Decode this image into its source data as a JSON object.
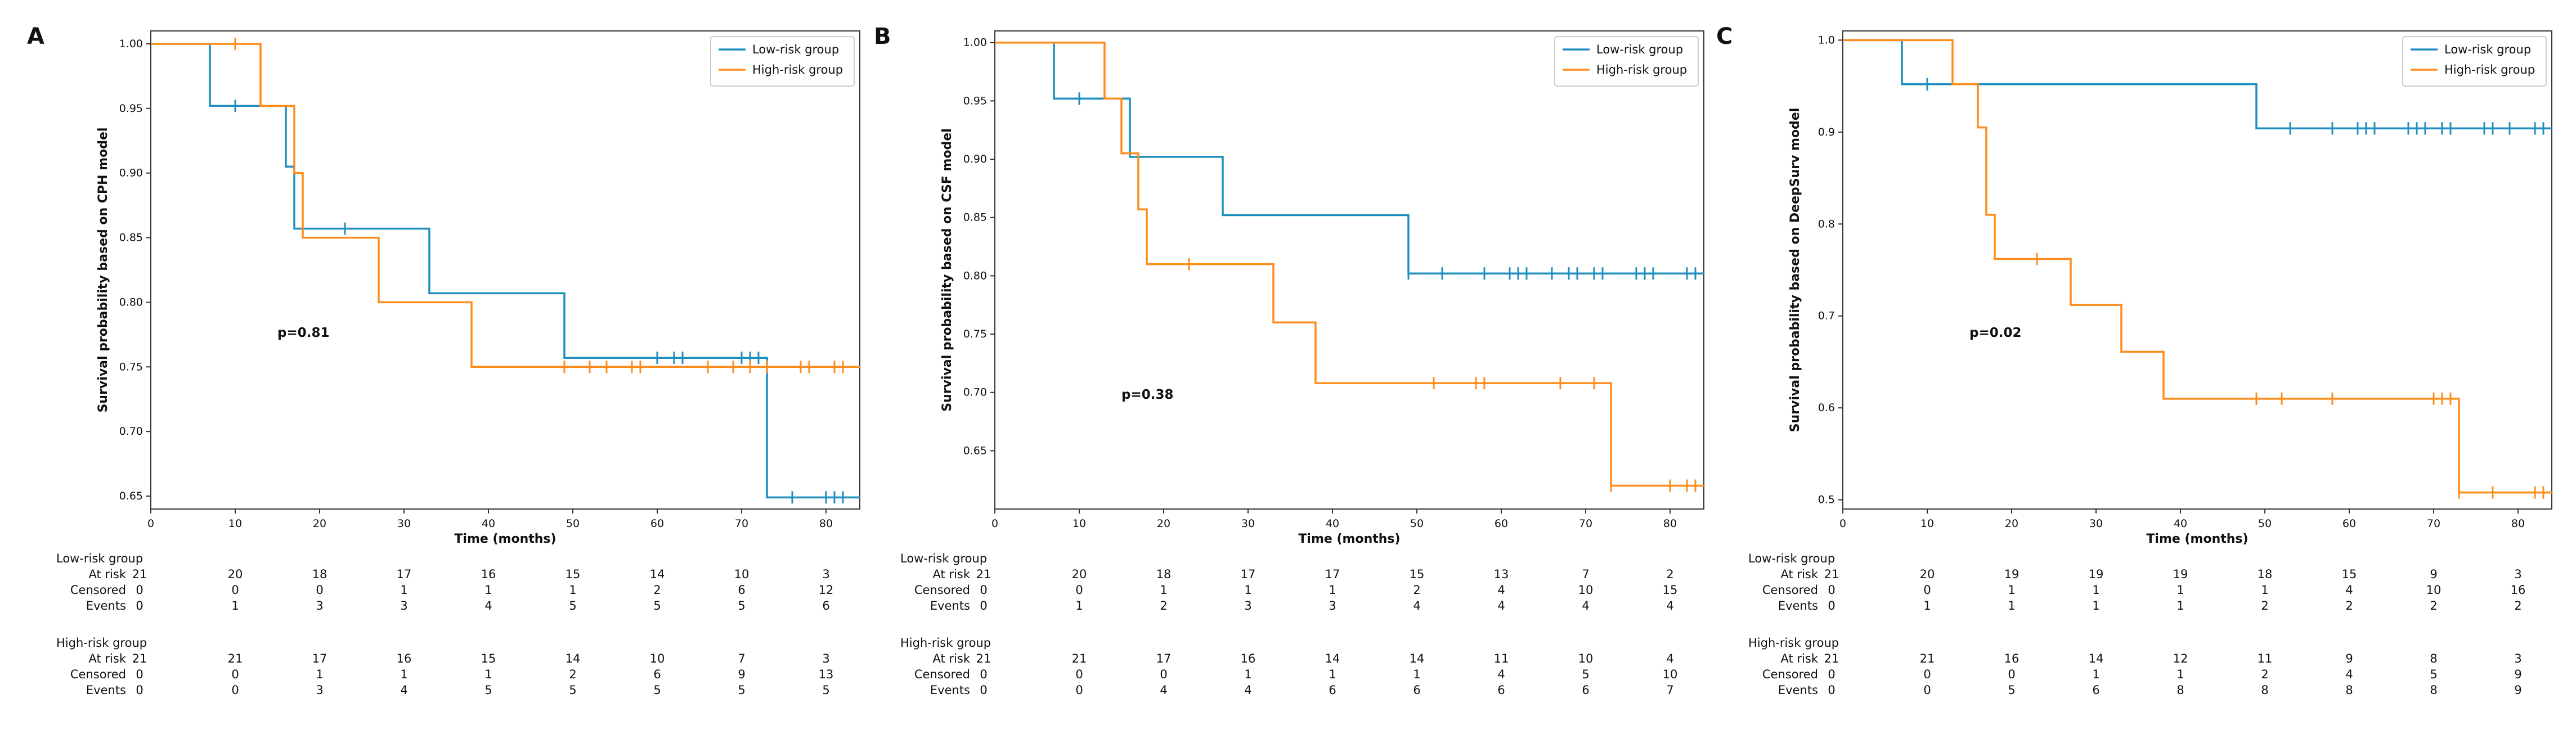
{
  "colors": {
    "low": "#1f8fbf",
    "high": "#ff8c1a",
    "axis": "#333333",
    "text": "#111111"
  },
  "chart_data": [
    {
      "type": "line",
      "panel_label": "A",
      "ylabel": "Survival probability based on CPH model",
      "xlabel": "Time (months)",
      "xlim": [
        0,
        84
      ],
      "ylim": [
        0.64,
        1.01
      ],
      "xticks": [
        0,
        10,
        20,
        30,
        40,
        50,
        60,
        70,
        80
      ],
      "yticks": [
        0.65,
        0.7,
        0.75,
        0.8,
        0.85,
        0.9,
        0.95,
        1.0
      ],
      "ytick_labels": [
        "0.65",
        "0.70",
        "0.75",
        "0.80",
        "0.85",
        "0.90",
        "0.95",
        "1.00"
      ],
      "pvalue_label": "p=0.81",
      "legend": [
        "Low-risk group",
        "High-risk group"
      ],
      "series": [
        {
          "name": "Low-risk group",
          "color": "low",
          "steps": [
            [
              0,
              1.0
            ],
            [
              7,
              0.952
            ],
            [
              16,
              0.905
            ],
            [
              17,
              0.857
            ],
            [
              33,
              0.807
            ],
            [
              49,
              0.757
            ],
            [
              73,
              0.649
            ],
            [
              84,
              0.649
            ]
          ],
          "censors": [
            [
              10,
              0.952
            ],
            [
              23,
              0.857
            ],
            [
              60,
              0.757
            ],
            [
              62,
              0.757
            ],
            [
              63,
              0.757
            ],
            [
              70,
              0.757
            ],
            [
              71,
              0.757
            ],
            [
              72,
              0.757
            ],
            [
              76,
              0.649
            ],
            [
              80,
              0.649
            ],
            [
              81,
              0.649
            ],
            [
              82,
              0.649
            ]
          ]
        },
        {
          "name": "High-risk group",
          "color": "high",
          "steps": [
            [
              0,
              1.0
            ],
            [
              13,
              0.952
            ],
            [
              17,
              0.9
            ],
            [
              18,
              0.85
            ],
            [
              27,
              0.8
            ],
            [
              38,
              0.75
            ],
            [
              84,
              0.75
            ]
          ],
          "censors": [
            [
              10,
              1.0
            ],
            [
              49,
              0.75
            ],
            [
              52,
              0.75
            ],
            [
              54,
              0.75
            ],
            [
              57,
              0.75
            ],
            [
              58,
              0.75
            ],
            [
              66,
              0.75
            ],
            [
              69,
              0.75
            ],
            [
              71,
              0.75
            ],
            [
              73,
              0.75
            ],
            [
              77,
              0.75
            ],
            [
              78,
              0.75
            ],
            [
              81,
              0.75
            ],
            [
              82,
              0.75
            ]
          ]
        }
      ]
    },
    {
      "type": "line",
      "panel_label": "B",
      "ylabel": "Survival probability based on CSF model",
      "xlabel": "Time (months)",
      "xlim": [
        0,
        84
      ],
      "ylim": [
        0.6,
        1.01
      ],
      "xticks": [
        0,
        10,
        20,
        30,
        40,
        50,
        60,
        70,
        80
      ],
      "yticks": [
        0.65,
        0.7,
        0.75,
        0.8,
        0.85,
        0.9,
        0.95,
        1.0
      ],
      "ytick_labels": [
        "0.65",
        "0.70",
        "0.75",
        "0.80",
        "0.85",
        "0.90",
        "0.95",
        "1.00"
      ],
      "pvalue_label": "p=0.38",
      "legend": [
        "Low-risk group",
        "High-risk group"
      ],
      "series": [
        {
          "name": "Low-risk group",
          "color": "low",
          "steps": [
            [
              0,
              1.0
            ],
            [
              7,
              0.952
            ],
            [
              16,
              0.902
            ],
            [
              27,
              0.852
            ],
            [
              49,
              0.802
            ],
            [
              84,
              0.802
            ]
          ],
          "censors": [
            [
              10,
              0.952
            ],
            [
              49,
              0.802
            ],
            [
              53,
              0.802
            ],
            [
              58,
              0.802
            ],
            [
              61,
              0.802
            ],
            [
              62,
              0.802
            ],
            [
              63,
              0.802
            ],
            [
              66,
              0.802
            ],
            [
              68,
              0.802
            ],
            [
              69,
              0.802
            ],
            [
              71,
              0.802
            ],
            [
              72,
              0.802
            ],
            [
              76,
              0.802
            ],
            [
              77,
              0.802
            ],
            [
              78,
              0.802
            ],
            [
              82,
              0.802
            ],
            [
              83,
              0.802
            ]
          ]
        },
        {
          "name": "High-risk group",
          "color": "high",
          "steps": [
            [
              0,
              1.0
            ],
            [
              13,
              0.952
            ],
            [
              15,
              0.905
            ],
            [
              17,
              0.857
            ],
            [
              18,
              0.81
            ],
            [
              33,
              0.76
            ],
            [
              38,
              0.708
            ],
            [
              73,
              0.62
            ],
            [
              84,
              0.62
            ]
          ],
          "censors": [
            [
              23,
              0.81
            ],
            [
              52,
              0.708
            ],
            [
              57,
              0.708
            ],
            [
              58,
              0.708
            ],
            [
              67,
              0.708
            ],
            [
              71,
              0.708
            ],
            [
              73,
              0.62
            ],
            [
              80,
              0.62
            ],
            [
              82,
              0.62
            ],
            [
              83,
              0.62
            ]
          ]
        }
      ]
    },
    {
      "type": "line",
      "panel_label": "C",
      "ylabel": "Survival probability based on DeepSurv model",
      "xlabel": "Time (months)",
      "xlim": [
        0,
        84
      ],
      "ylim": [
        0.49,
        1.01
      ],
      "xticks": [
        0,
        10,
        20,
        30,
        40,
        50,
        60,
        70,
        80
      ],
      "yticks": [
        0.5,
        0.6,
        0.7,
        0.8,
        0.9,
        1.0
      ],
      "ytick_labels": [
        "0.5",
        "0.6",
        "0.7",
        "0.8",
        "0.9",
        "1.0"
      ],
      "pvalue_label": "p=0.02",
      "legend": [
        "Low-risk group",
        "High-risk group"
      ],
      "series": [
        {
          "name": "Low-risk group",
          "color": "low",
          "steps": [
            [
              0,
              1.0
            ],
            [
              7,
              0.952
            ],
            [
              49,
              0.904
            ],
            [
              84,
              0.904
            ]
          ],
          "censors": [
            [
              10,
              0.952
            ],
            [
              53,
              0.904
            ],
            [
              58,
              0.904
            ],
            [
              61,
              0.904
            ],
            [
              62,
              0.904
            ],
            [
              63,
              0.904
            ],
            [
              67,
              0.904
            ],
            [
              68,
              0.904
            ],
            [
              69,
              0.904
            ],
            [
              71,
              0.904
            ],
            [
              72,
              0.904
            ],
            [
              76,
              0.904
            ],
            [
              77,
              0.904
            ],
            [
              79,
              0.904
            ],
            [
              82,
              0.904
            ],
            [
              83,
              0.904
            ]
          ]
        },
        {
          "name": "High-risk group",
          "color": "high",
          "steps": [
            [
              0,
              1.0
            ],
            [
              13,
              0.952
            ],
            [
              16,
              0.905
            ],
            [
              17,
              0.81
            ],
            [
              18,
              0.762
            ],
            [
              27,
              0.712
            ],
            [
              33,
              0.661
            ],
            [
              38,
              0.61
            ],
            [
              73,
              0.508
            ],
            [
              84,
              0.508
            ]
          ],
          "censors": [
            [
              23,
              0.762
            ],
            [
              49,
              0.61
            ],
            [
              52,
              0.61
            ],
            [
              58,
              0.61
            ],
            [
              70,
              0.61
            ],
            [
              71,
              0.61
            ],
            [
              72,
              0.61
            ],
            [
              73,
              0.508
            ],
            [
              77,
              0.508
            ],
            [
              82,
              0.508
            ],
            [
              83,
              0.508
            ]
          ]
        }
      ]
    }
  ],
  "risk_tables": [
    {
      "low_title": "Low-risk group",
      "low_rows": [
        {
          "label": "At risk",
          "values": [
            "21",
            "20",
            "18",
            "17",
            "16",
            "15",
            "14",
            "10",
            "3"
          ]
        },
        {
          "label": "Censored",
          "values": [
            "0",
            "0",
            "0",
            "1",
            "1",
            "1",
            "2",
            "6",
            "12"
          ]
        },
        {
          "label": "Events",
          "values": [
            "0",
            "1",
            "3",
            "3",
            "4",
            "5",
            "5",
            "5",
            "6"
          ]
        }
      ],
      "high_title": "High-risk group",
      "high_rows": [
        {
          "label": "At risk",
          "values": [
            "21",
            "21",
            "17",
            "16",
            "15",
            "14",
            "10",
            "7",
            "3"
          ]
        },
        {
          "label": "Censored",
          "values": [
            "0",
            "0",
            "1",
            "1",
            "1",
            "2",
            "6",
            "9",
            "13"
          ]
        },
        {
          "label": "Events",
          "values": [
            "0",
            "0",
            "3",
            "4",
            "5",
            "5",
            "5",
            "5",
            "5"
          ]
        }
      ]
    },
    {
      "low_title": "Low-risk group",
      "low_rows": [
        {
          "label": "At risk",
          "values": [
            "21",
            "20",
            "18",
            "17",
            "17",
            "15",
            "13",
            "7",
            "2"
          ]
        },
        {
          "label": "Censored",
          "values": [
            "0",
            "0",
            "1",
            "1",
            "1",
            "2",
            "4",
            "10",
            "15"
          ]
        },
        {
          "label": "Events",
          "values": [
            "0",
            "1",
            "2",
            "3",
            "3",
            "4",
            "4",
            "4",
            "4"
          ]
        }
      ],
      "high_title": "High-risk group",
      "high_rows": [
        {
          "label": "At risk",
          "values": [
            "21",
            "21",
            "17",
            "16",
            "14",
            "14",
            "11",
            "10",
            "4"
          ]
        },
        {
          "label": "Censored",
          "values": [
            "0",
            "0",
            "0",
            "1",
            "1",
            "1",
            "4",
            "5",
            "10"
          ]
        },
        {
          "label": "Events",
          "values": [
            "0",
            "0",
            "4",
            "4",
            "6",
            "6",
            "6",
            "6",
            "7"
          ]
        }
      ]
    },
    {
      "low_title": "Low-risk group",
      "low_rows": [
        {
          "label": "At risk",
          "values": [
            "21",
            "20",
            "19",
            "19",
            "19",
            "18",
            "15",
            "9",
            "3"
          ]
        },
        {
          "label": "Censored",
          "values": [
            "0",
            "0",
            "1",
            "1",
            "1",
            "1",
            "4",
            "10",
            "16"
          ]
        },
        {
          "label": "Events",
          "values": [
            "0",
            "1",
            "1",
            "1",
            "1",
            "2",
            "2",
            "2",
            "2"
          ]
        }
      ],
      "high_title": "High-risk group",
      "high_rows": [
        {
          "label": "At risk",
          "values": [
            "21",
            "21",
            "16",
            "14",
            "12",
            "11",
            "9",
            "8",
            "3"
          ]
        },
        {
          "label": "Censored",
          "values": [
            "0",
            "0",
            "0",
            "1",
            "1",
            "2",
            "4",
            "5",
            "9"
          ]
        },
        {
          "label": "Events",
          "values": [
            "0",
            "0",
            "5",
            "6",
            "8",
            "8",
            "8",
            "8",
            "9"
          ]
        }
      ]
    }
  ]
}
